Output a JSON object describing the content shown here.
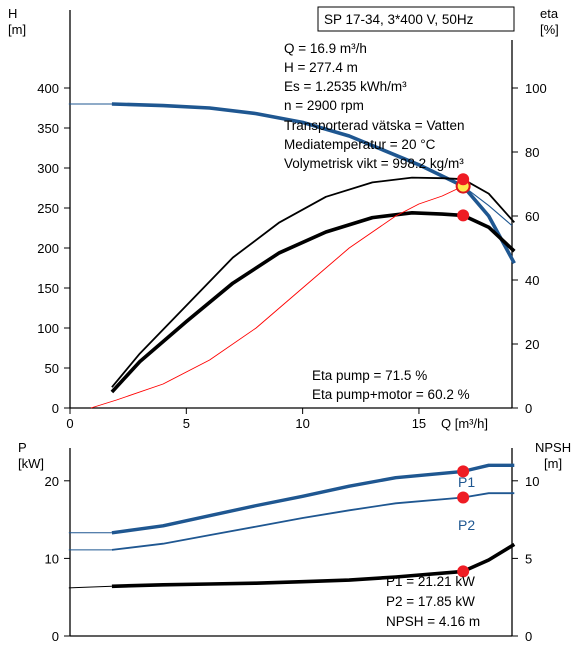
{
  "chart_data": [
    {
      "type": "line",
      "title": "SP 17-34, 3*400 V, 50Hz",
      "xlabel": "Q [m³/h]",
      "ylabel_left": [
        "H",
        "[m]"
      ],
      "ylabel_right": [
        "eta",
        "[%]"
      ],
      "xlim": [
        0,
        19
      ],
      "ylim_left": [
        0,
        450
      ],
      "ylim_right": [
        0,
        112.5
      ],
      "x_ticks": [
        0,
        5,
        10,
        15
      ],
      "y_ticks_left": [
        0,
        50,
        100,
        150,
        200,
        250,
        300,
        350,
        400
      ],
      "y_ticks_right": [
        0,
        20,
        40,
        60,
        80,
        100
      ],
      "info_lines": [
        "Q = 16.9 m³/h",
        "H = 277.4 m",
        "Es = 1.2535 kWh/m³",
        "n = 2900 rpm",
        "Transporterad vätska = Vatten",
        "Mediatemperatur = 20 °C",
        "Volymetrisk vikt = 998.2 kg/m³"
      ],
      "eta_text": [
        "Eta pump = 71.5 %",
        "Eta pump+motor = 60.2 %"
      ],
      "series": [
        {
          "axis": "left",
          "color": "#1f5791",
          "x": [
            -0.05,
            1.8,
            4,
            6,
            8,
            10,
            12,
            13.5,
            15,
            16.9,
            18,
            19
          ],
          "values": [
            380,
            380,
            378,
            375,
            368,
            357,
            340,
            322,
            304,
            277.4,
            253,
            228
          ]
        },
        {
          "axis": "left",
          "color": "#1f5791",
          "x": [
            1.8,
            4,
            6,
            8,
            10,
            12,
            13.5,
            15,
            16.9,
            18,
            19.1
          ],
          "values": [
            380,
            378,
            375,
            368,
            357,
            340,
            322,
            304,
            277.4,
            240,
            181
          ]
        },
        {
          "axis": "right",
          "color": "#000000",
          "x": [
            1.8,
            3,
            5,
            7,
            9,
            11,
            13,
            14.7,
            16,
            16.9,
            18,
            19.1
          ],
          "values": [
            6.5,
            17,
            32,
            47,
            58,
            66,
            70.5,
            72,
            71.8,
            71.5,
            67,
            58
          ]
        },
        {
          "axis": "right",
          "color": "#000000",
          "x": [
            1.8,
            3,
            5,
            7,
            9,
            11,
            13,
            14.7,
            16,
            16.9,
            18,
            19.1
          ],
          "values": [
            5,
            14.5,
            27,
            39,
            48.5,
            55,
            59.5,
            61,
            60.6,
            60.2,
            56.5,
            49
          ]
        },
        {
          "axis": "left",
          "color": "#ff0000",
          "x": [
            0.9,
            2,
            4,
            6,
            8,
            10,
            12,
            14,
            15,
            16,
            16.9
          ],
          "values": [
            0,
            10,
            30,
            60,
            100,
            150,
            200,
            240,
            255,
            265,
            277.4
          ]
        }
      ],
      "points": [
        {
          "x": 16.9,
          "y": 277.4,
          "axis": "left",
          "style": "duty"
        },
        {
          "x": 16.9,
          "y": 71.5,
          "axis": "right",
          "style": "marker"
        },
        {
          "x": 16.9,
          "y": 60.2,
          "axis": "right",
          "style": "marker"
        }
      ]
    },
    {
      "type": "line",
      "xlabel": "",
      "ylabel_left": [
        "P",
        "[kW]"
      ],
      "ylabel_right": [
        "NPSH",
        "[m]"
      ],
      "xlim": [
        0,
        19
      ],
      "ylim_left": [
        0,
        25
      ],
      "ylim_right": [
        0,
        12.5
      ],
      "y_ticks_left": [
        0,
        10,
        20
      ],
      "y_ticks_right": [
        0,
        5,
        10
      ],
      "info_lines": [
        "P1 = 21.21 kW",
        "P2 = 17.85 kW",
        "NPSH = 4.16 m"
      ],
      "series": [
        {
          "name": "P1",
          "axis": "left",
          "color": "#1f5791",
          "x": [
            -0.05,
            1.8,
            4,
            6,
            8,
            10,
            12,
            14,
            16.9,
            18,
            19.1
          ],
          "values": [
            13.3,
            13.3,
            14.2,
            15.5,
            16.8,
            18.0,
            19.3,
            20.4,
            21.21,
            22.0,
            22.0
          ]
        },
        {
          "name": "P2",
          "axis": "left",
          "color": "#1f5791",
          "x": [
            -0.05,
            1.8,
            4,
            6,
            8,
            10,
            12,
            14,
            16.9,
            18,
            19.1
          ],
          "values": [
            11.1,
            11.1,
            11.9,
            13.0,
            14.1,
            15.2,
            16.2,
            17.1,
            17.85,
            18.4,
            18.4
          ]
        },
        {
          "axis": "right",
          "color": "#000000",
          "x": [
            -0.05,
            1.8,
            4,
            6,
            8,
            10,
            12,
            14,
            16.9,
            18,
            19.1
          ],
          "values": [
            3.1,
            3.2,
            3.3,
            3.35,
            3.4,
            3.5,
            3.6,
            3.8,
            4.16,
            4.9,
            5.9
          ]
        }
      ],
      "points": [
        {
          "x": 16.9,
          "y": 21.21,
          "axis": "left",
          "style": "marker"
        },
        {
          "x": 16.9,
          "y": 17.85,
          "axis": "left",
          "style": "marker"
        },
        {
          "x": 16.9,
          "y": 4.16,
          "axis": "right",
          "style": "marker"
        }
      ]
    }
  ]
}
